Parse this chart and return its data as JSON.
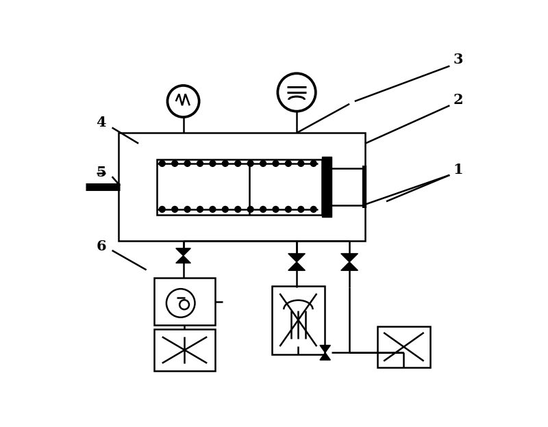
{
  "bg_color": "#ffffff",
  "line_color": "#000000",
  "lw": 1.8,
  "lw_thick": 4.0,
  "fig_width": 8.0,
  "fig_height": 6.24,
  "dpi": 100
}
